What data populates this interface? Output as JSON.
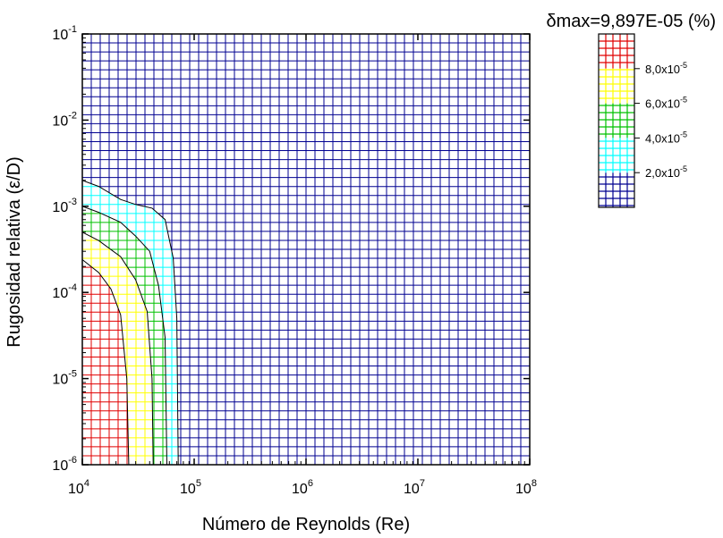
{
  "chart_data": {
    "type": "heatmap",
    "title": "δmax=9,897E-05 (%)",
    "xlabel": "Número de Reynolds (Re)",
    "ylabel": "Rugosidad relativa (ε/D)",
    "x_scale": "log",
    "y_scale": "log",
    "xlim": [
      10000,
      100000000
    ],
    "ylim": [
      1e-06,
      0.1
    ],
    "x_ticks": [
      {
        "base": "10",
        "exp": "4",
        "value": 10000
      },
      {
        "base": "10",
        "exp": "5",
        "value": 100000
      },
      {
        "base": "10",
        "exp": "6",
        "value": 1000000
      },
      {
        "base": "10",
        "exp": "7",
        "value": 10000000
      },
      {
        "base": "10",
        "exp": "8",
        "value": 100000000
      }
    ],
    "y_ticks": [
      {
        "base": "10",
        "exp": "-1",
        "value": 0.1
      },
      {
        "base": "10",
        "exp": "-2",
        "value": 0.01
      },
      {
        "base": "10",
        "exp": "-3",
        "value": 0.001
      },
      {
        "base": "10",
        "exp": "-4",
        "value": 0.0001
      },
      {
        "base": "10",
        "exp": "-5",
        "value": 1e-05
      },
      {
        "base": "10",
        "exp": "-6",
        "value": 1e-06
      }
    ],
    "color_levels": [
      {
        "range": [
          8e-05,
          0.0001
        ],
        "color": "#e00000"
      },
      {
        "range": [
          6e-05,
          8e-05
        ],
        "color": "#ffff00"
      },
      {
        "range": [
          4e-05,
          6e-05
        ],
        "color": "#00c000"
      },
      {
        "range": [
          2e-05,
          4e-05
        ],
        "color": "#00ffff"
      },
      {
        "range": [
          0,
          2e-05
        ],
        "color": "#000090"
      }
    ],
    "legend_ticks": [
      {
        "mant": "8,0x10",
        "exp": "-5",
        "value": 8e-05
      },
      {
        "mant": "6,0x10",
        "exp": "-5",
        "value": 6e-05
      },
      {
        "mant": "4,0x10",
        "exp": "-5",
        "value": 4e-05
      },
      {
        "mant": "2,0x10",
        "exp": "-5",
        "value": 2e-05
      }
    ],
    "legend_placement": "right",
    "grid": true,
    "contours": [
      {
        "level": 2e-05,
        "points": [
          [
            10000,
            0.002
          ],
          [
            14000,
            0.0017
          ],
          [
            22000,
            0.0012
          ],
          [
            30000,
            0.00105
          ],
          [
            42000,
            0.00095
          ],
          [
            55000,
            0.0007
          ],
          [
            65000,
            0.00025
          ],
          [
            70000,
            5e-05
          ],
          [
            72000,
            1e-06
          ]
        ]
      },
      {
        "level": 4e-05,
        "points": [
          [
            10000,
            0.001
          ],
          [
            14000,
            0.00085
          ],
          [
            22000,
            0.00065
          ],
          [
            30000,
            0.00045
          ],
          [
            40000,
            0.0003
          ],
          [
            48000,
            0.00012
          ],
          [
            55000,
            3e-05
          ],
          [
            57000,
            1e-06
          ]
        ]
      },
      {
        "level": 6e-05,
        "points": [
          [
            10000,
            0.0005
          ],
          [
            14000,
            0.0004
          ],
          [
            22000,
            0.00026
          ],
          [
            30000,
            0.00014
          ],
          [
            38000,
            6e-05
          ],
          [
            42000,
            1e-05
          ],
          [
            43000,
            1e-06
          ]
        ]
      },
      {
        "level": 8e-05,
        "points": [
          [
            10000,
            0.00024
          ],
          [
            14000,
            0.00017
          ],
          [
            18000,
            0.00011
          ],
          [
            22000,
            5.5e-05
          ],
          [
            25000,
            1e-05
          ],
          [
            26000,
            1e-06
          ]
        ]
      }
    ]
  }
}
